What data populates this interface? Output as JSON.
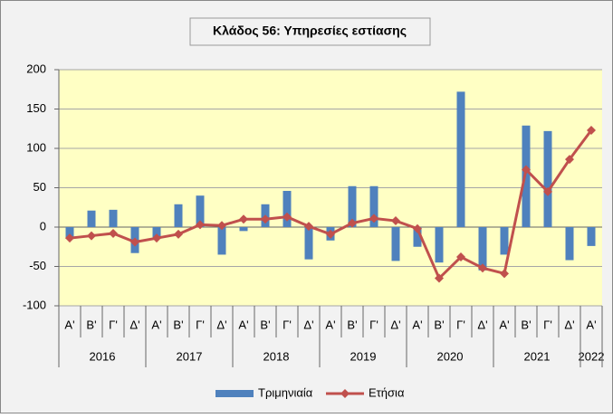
{
  "chart_data": {
    "type": "bar",
    "title": "Κλάδος 56: Υπηρεσίες εστίασης",
    "categories": [
      "Α'",
      "Β'",
      "Γ'",
      "Δ'",
      "Α'",
      "Β'",
      "Γ'",
      "Δ'",
      "Α'",
      "Β'",
      "Γ'",
      "Δ'",
      "Α'",
      "Β'",
      "Γ'",
      "Δ'",
      "Α'",
      "Β'",
      "Γ'",
      "Δ'",
      "Α'",
      "Β'",
      "Γ'",
      "Δ'",
      "Α'"
    ],
    "x_groups": [
      {
        "label": "2016",
        "size": 4
      },
      {
        "label": "2017",
        "size": 4
      },
      {
        "label": "2018",
        "size": 4
      },
      {
        "label": "2019",
        "size": 4
      },
      {
        "label": "2020",
        "size": 4
      },
      {
        "label": "2021",
        "size": 4
      },
      {
        "label": "2022",
        "size": 1
      }
    ],
    "series": [
      {
        "name": "Τριμηνιαία",
        "type": "bar",
        "color": "#4f81bd",
        "values": [
          -15,
          21,
          22,
          -33,
          -13,
          29,
          40,
          -35,
          -5,
          29,
          46,
          -41,
          -17,
          52,
          52,
          -43,
          -25,
          -45,
          172,
          -55,
          -35,
          129,
          122,
          -42,
          -24
        ]
      },
      {
        "name": "Ετήσια",
        "type": "line",
        "color": "#c0504d",
        "values": [
          -14,
          -11,
          -8,
          -19,
          -14,
          -9,
          3,
          2,
          10,
          10,
          13,
          1,
          -9,
          5,
          11,
          8,
          -2,
          -65,
          -38,
          -52,
          -59,
          73,
          45,
          86,
          123
        ]
      }
    ],
    "ylim": [
      -100,
      200
    ],
    "yticks": [
      -100,
      -50,
      0,
      50,
      100,
      150,
      200
    ],
    "grid": true,
    "legend": "bottom"
  }
}
